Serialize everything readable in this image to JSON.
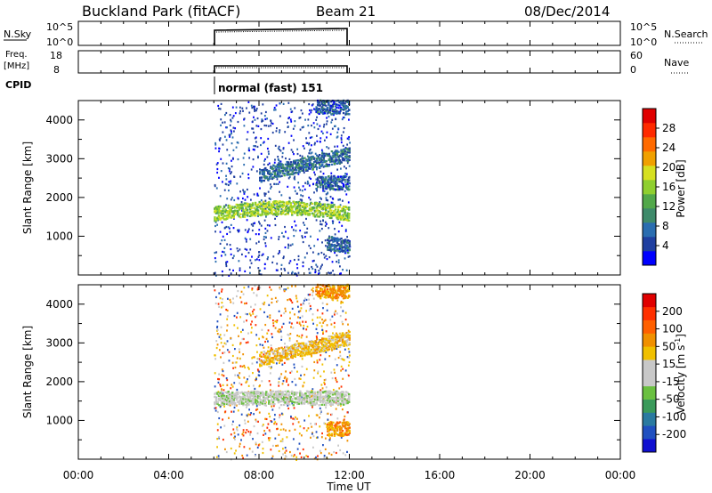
{
  "header": {
    "site": "Buckland Park (fitACF)",
    "beam": "Beam 21",
    "date": "08/Dec/2014"
  },
  "nsky_panel": {
    "left_label": "N.Sky",
    "left_ticks": [
      "10^5",
      "10^0"
    ],
    "right_ticks": [
      "10^5",
      "10^0"
    ],
    "right_label": "N.Search"
  },
  "freq_panel": {
    "left_label_1": "Freq.",
    "left_label_2": "[MHz]",
    "left_ticks": [
      "18",
      "8"
    ],
    "right_ticks": [
      "60",
      "0"
    ],
    "right_label": "Nave"
  },
  "cpid": {
    "label": "CPID",
    "value": "normal (fast) 151"
  },
  "power_panel": {
    "ylabel": "Slant Range [km]",
    "yticks": [
      "4000",
      "3000",
      "2000",
      "1000"
    ],
    "colorbar_label": "Power [dB]",
    "colorbar_ticks": [
      "28",
      "24",
      "20",
      "16",
      "12",
      "8",
      "4"
    ],
    "colors": [
      "#0000ff",
      "#1f3fa0",
      "#2a6db0",
      "#3e8a6a",
      "#52a84a",
      "#8fcf2f",
      "#d6e020",
      "#f0a000",
      "#ff6a00",
      "#ff2a00",
      "#e00000"
    ]
  },
  "velocity_panel": {
    "ylabel": "Slant Range [km]",
    "yticks": [
      "4000",
      "3000",
      "2000",
      "1000"
    ],
    "colorbar_label": "Velocity [m s^-1]",
    "colorbar_ticks": [
      "200",
      "100",
      "50",
      "15",
      "-15",
      "-50",
      "-100",
      "-200"
    ],
    "colors": [
      "#1010d0",
      "#2050c0",
      "#2a7aa0",
      "#3a9a5a",
      "#6ac040",
      "#c8c8c8",
      "#c8c8c8",
      "#f0c000",
      "#f09000",
      "#ff6000",
      "#ff3000",
      "#e00000"
    ]
  },
  "xaxis": {
    "ticks": [
      "00:00",
      "04:00",
      "08:00",
      "12:00",
      "16:00",
      "20:00",
      "00:00"
    ],
    "label": "Time UT"
  },
  "chart_data": {
    "type": "heatmap",
    "title": "Buckland Park (fitACF)",
    "xlabel": "Time UT",
    "ylabel": "Slant Range [km]",
    "xlim_hours": [
      0,
      24
    ],
    "ylim_km": [
      0,
      4500
    ],
    "data_interval_hours": [
      6.0,
      12.0
    ],
    "power_echo_bands": [
      {
        "t_start": 6.0,
        "t_end": 12.0,
        "range_km_at_start": 1600,
        "range_km_at_end": 1600,
        "mid_range_km": 1750,
        "power_db": 14
      },
      {
        "t_start": 8.0,
        "t_end": 12.0,
        "range_km_at_start": 2600,
        "range_km_at_end": 3150,
        "power_db": 6
      },
      {
        "t_start": 10.5,
        "t_end": 12.0,
        "range_km_at_start": 4350,
        "range_km_at_end": 4350,
        "power_db": 5
      },
      {
        "t_start": 10.5,
        "t_end": 12.0,
        "range_km_at_start": 2400,
        "range_km_at_end": 2400,
        "power_db": 5
      },
      {
        "t_start": 11.0,
        "t_end": 12.0,
        "range_km_at_start": 850,
        "range_km_at_end": 750,
        "power_db": 5
      }
    ],
    "velocity_echo_bands": [
      {
        "t_start": 6.0,
        "t_end": 12.0,
        "range_km": 1600,
        "velocity_m_s": 0
      },
      {
        "t_start": 8.0,
        "t_end": 12.0,
        "range_km_at_start": 2600,
        "range_km_at_end": 3150,
        "velocity_m_s": -50
      },
      {
        "t_start": 10.5,
        "t_end": 12.0,
        "range_km": 4350,
        "velocity_m_s": -60
      },
      {
        "t_start": 11.0,
        "t_end": 12.0,
        "range_km": 800,
        "velocity_m_s": -80
      }
    ],
    "frequency_mhz": 10,
    "cpid": "normal (fast) 151"
  }
}
